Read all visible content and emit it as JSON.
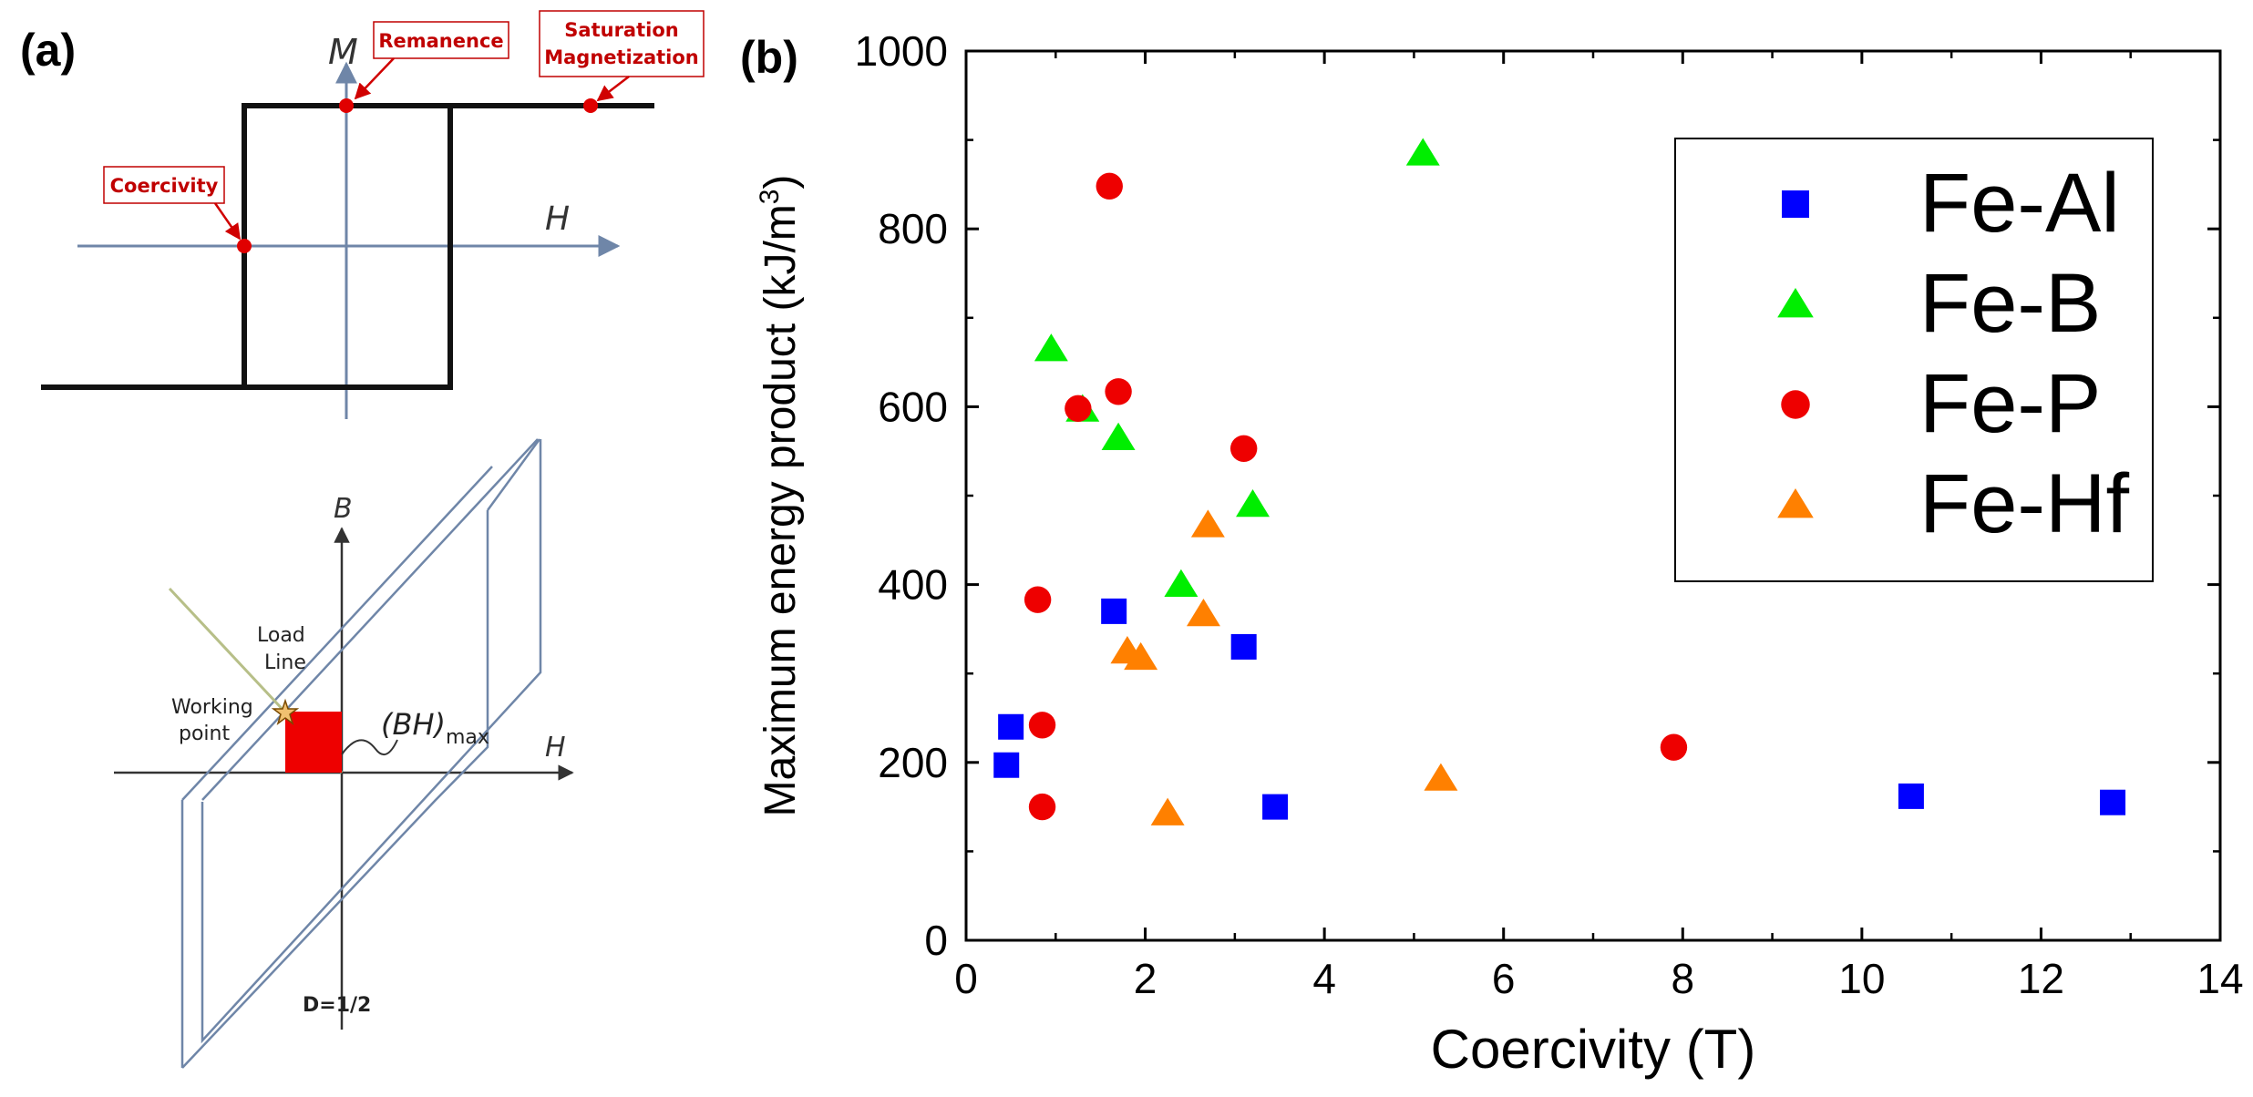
{
  "panel_a": {
    "label": "(a)",
    "hysteresis": {
      "axis_m": "M",
      "axis_h": "H",
      "callouts": {
        "remanence": "Remanence",
        "saturation_line1": "Saturation",
        "saturation_line2": "Magnetization",
        "coercivity": "Coercivity"
      }
    },
    "bh_loop": {
      "axis_b": "B",
      "axis_h": "H",
      "load_line_1": "Load",
      "load_line_2": "Line",
      "working_point_1": "Working",
      "working_point_2": "point",
      "bh_main": "(BH)",
      "bh_sub": "max",
      "demag": "D=1/2"
    }
  },
  "panel_b": {
    "label": "(b)"
  },
  "colors": {
    "Fe-Al": "#0000ff",
    "Fe-B": "#00ee00",
    "Fe-P": "#ee0000",
    "Fe-Hf": "#ff8000",
    "diagram_blue": "#6f86a8",
    "callout_red": "#c00000"
  },
  "chart_data": {
    "type": "scatter",
    "xlabel": "Coercivity (T)",
    "ylabel": "Maximum energy product (kJ/m",
    "ylabel_sup": "3",
    "ylabel_end": ")",
    "xlim": [
      0,
      14
    ],
    "ylim": [
      0,
      1000
    ],
    "xticks": [
      0,
      2,
      4,
      6,
      8,
      10,
      12,
      14
    ],
    "yticks": [
      0,
      200,
      400,
      600,
      800,
      1000
    ],
    "legend_position": "upper-right",
    "series": [
      {
        "name": "Fe-Al",
        "marker": "square",
        "points": [
          [
            0.45,
            197
          ],
          [
            0.5,
            240
          ],
          [
            1.65,
            370
          ],
          [
            3.1,
            330
          ],
          [
            3.45,
            150
          ],
          [
            10.55,
            162
          ],
          [
            12.8,
            155
          ]
        ]
      },
      {
        "name": "Fe-B",
        "marker": "triangle",
        "points": [
          [
            0.95,
            665
          ],
          [
            1.3,
            597
          ],
          [
            1.7,
            565
          ],
          [
            2.4,
            400
          ],
          [
            3.2,
            490
          ],
          [
            5.1,
            885
          ]
        ]
      },
      {
        "name": "Fe-P",
        "marker": "circle",
        "points": [
          [
            1.6,
            848
          ],
          [
            1.25,
            598
          ],
          [
            1.7,
            617
          ],
          [
            0.8,
            383
          ],
          [
            3.1,
            553
          ],
          [
            0.85,
            242
          ],
          [
            0.85,
            150
          ],
          [
            7.9,
            217
          ]
        ]
      },
      {
        "name": "Fe-Hf",
        "marker": "triangle",
        "points": [
          [
            2.7,
            467
          ],
          [
            2.65,
            367
          ],
          [
            1.8,
            325
          ],
          [
            1.95,
            318
          ],
          [
            2.25,
            143
          ],
          [
            5.3,
            182
          ]
        ]
      }
    ]
  }
}
